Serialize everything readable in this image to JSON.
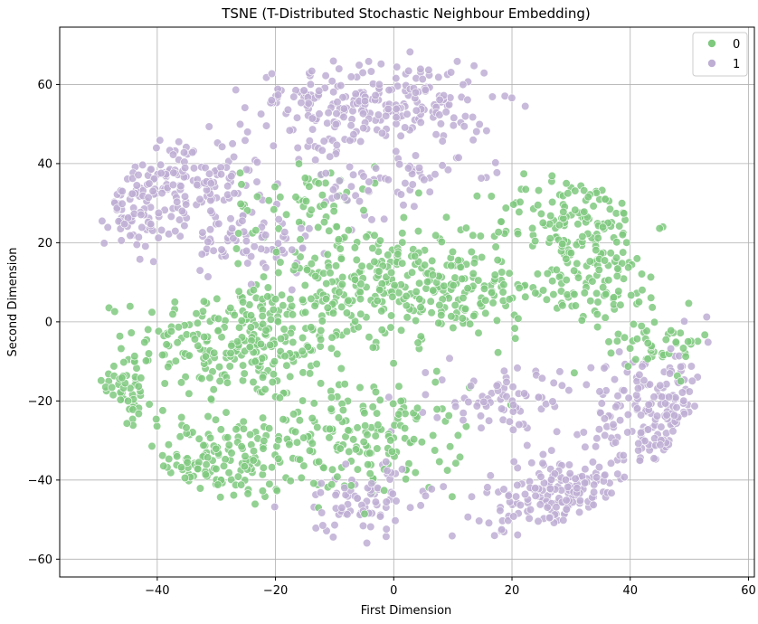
{
  "chart_data": {
    "type": "scatter",
    "title": "TSNE (T-Distributed Stochastic Neighbour Embedding)",
    "xlabel": "First Dimension",
    "ylabel": "Second Dimension",
    "xlim": [
      -56.5,
      61
    ],
    "ylim": [
      -64.5,
      74.5
    ],
    "xticks": [
      -40,
      -20,
      0,
      20,
      40,
      60
    ],
    "yticks": [
      -60,
      -40,
      -20,
      0,
      20,
      40,
      60
    ],
    "grid": true,
    "legend_position": "top-right",
    "series": [
      {
        "name": "0",
        "color": "#7fc97f",
        "clusters": [
          {
            "center": [
              -25,
              -5
            ],
            "spread": [
              12,
              10
            ],
            "count": 260
          },
          {
            "center": [
              -30,
              -35
            ],
            "spread": [
              9,
              8
            ],
            "count": 140
          },
          {
            "center": [
              -5,
              -30
            ],
            "spread": [
              11,
              9
            ],
            "count": 170
          },
          {
            "center": [
              -5,
              10
            ],
            "spread": [
              12,
              10
            ],
            "count": 170
          },
          {
            "center": [
              10,
              8
            ],
            "spread": [
              11,
              8
            ],
            "count": 160
          },
          {
            "center": [
              30,
              25
            ],
            "spread": [
              9,
              8
            ],
            "count": 130
          },
          {
            "center": [
              35,
              10
            ],
            "spread": [
              7,
              6
            ],
            "count": 80
          },
          {
            "center": [
              -45,
              -15
            ],
            "spread": [
              3,
              7
            ],
            "count": 50
          },
          {
            "center": [
              -15,
              30
            ],
            "spread": [
              8,
              8
            ],
            "count": 60
          },
          {
            "center": [
              45,
              -5
            ],
            "spread": [
              6,
              5
            ],
            "count": 50
          }
        ]
      },
      {
        "name": "1",
        "color": "#beaed4",
        "clusters": [
          {
            "center": [
              -10,
              55
            ],
            "spread": [
              10,
              8
            ],
            "count": 150
          },
          {
            "center": [
              5,
              55
            ],
            "spread": [
              8,
              8
            ],
            "count": 110
          },
          {
            "center": [
              -35,
              35
            ],
            "spread": [
              8,
              8
            ],
            "count": 150
          },
          {
            "center": [
              -45,
              30
            ],
            "spread": [
              4,
              8
            ],
            "count": 60
          },
          {
            "center": [
              -25,
              20
            ],
            "spread": [
              8,
              6
            ],
            "count": 70
          },
          {
            "center": [
              0,
              35
            ],
            "spread": [
              8,
              6
            ],
            "count": 60
          },
          {
            "center": [
              30,
              -45
            ],
            "spread": [
              10,
              7
            ],
            "count": 160
          },
          {
            "center": [
              45,
              -25
            ],
            "spread": [
              8,
              12
            ],
            "count": 170
          },
          {
            "center": [
              20,
              -20
            ],
            "spread": [
              9,
              6
            ],
            "count": 80
          },
          {
            "center": [
              -5,
              -45
            ],
            "spread": [
              8,
              6
            ],
            "count": 80
          }
        ]
      }
    ]
  },
  "legend": {
    "items": [
      {
        "label": "0",
        "color": "#7fc97f"
      },
      {
        "label": "1",
        "color": "#beaed4"
      }
    ]
  }
}
